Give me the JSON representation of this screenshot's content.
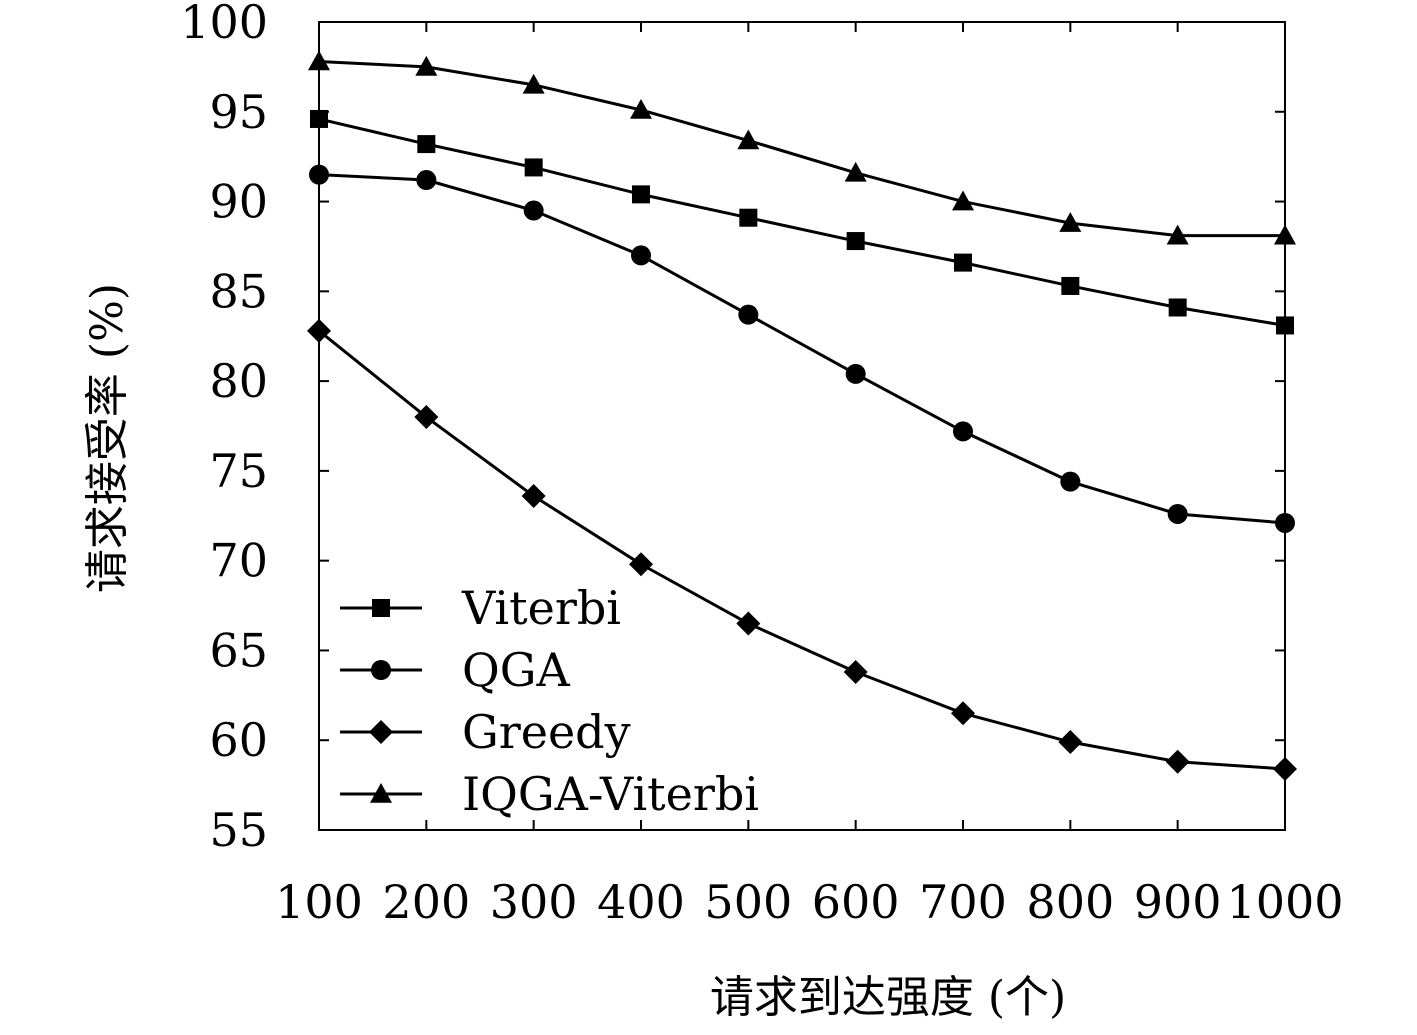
{
  "chart_data": {
    "type": "line",
    "xlabel": "请求到达强度 (个)",
    "ylabel": "请求接受率 (%)",
    "x": [
      100,
      200,
      300,
      400,
      500,
      600,
      700,
      800,
      900,
      1000
    ],
    "xlim": [
      100,
      1000
    ],
    "ylim": [
      55,
      100
    ],
    "yticks": [
      55,
      60,
      65,
      70,
      75,
      80,
      85,
      90,
      95,
      100
    ],
    "grid": false,
    "legend_position": "bottom-left",
    "series": [
      {
        "name": "Viterbi",
        "marker": "square",
        "values": [
          94.6,
          93.2,
          91.9,
          90.4,
          89.1,
          87.8,
          86.6,
          85.3,
          84.1,
          83.1
        ]
      },
      {
        "name": "QGA",
        "marker": "circle",
        "values": [
          91.5,
          91.2,
          89.5,
          87.0,
          83.7,
          80.4,
          77.2,
          74.4,
          72.6,
          72.1
        ]
      },
      {
        "name": "Greedy",
        "marker": "diamond",
        "values": [
          82.8,
          78.0,
          73.6,
          69.8,
          66.5,
          63.8,
          61.5,
          59.9,
          58.8,
          58.4
        ]
      },
      {
        "name": "IQGA-Viterbi",
        "marker": "triangle",
        "values": [
          97.8,
          97.5,
          96.5,
          95.1,
          93.4,
          91.6,
          90.0,
          88.8,
          88.1,
          88.1
        ]
      }
    ]
  }
}
